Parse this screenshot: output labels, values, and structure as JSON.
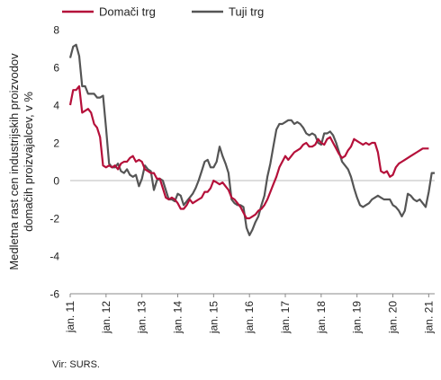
{
  "chart_data": {
    "type": "line",
    "ylabel": "Medletna rast cen industrijskih proizvodov domačih proizvajalcev, v %",
    "ylim": [
      -6,
      8
    ],
    "yticks": [
      -6,
      -4,
      -2,
      0,
      2,
      4,
      6,
      8
    ],
    "xlim": [
      0,
      122
    ],
    "xticks": [
      {
        "label": "jan. 11",
        "t": 0
      },
      {
        "label": "jan. 12",
        "t": 12
      },
      {
        "label": "jan. 13",
        "t": 24
      },
      {
        "label": "jan. 14",
        "t": 36
      },
      {
        "label": "jan. 15",
        "t": 48
      },
      {
        "label": "jan. 16",
        "t": 60
      },
      {
        "label": "jan. 17",
        "t": 72
      },
      {
        "label": "jan. 18",
        "t": 84
      },
      {
        "label": "jan. 19",
        "t": 96
      },
      {
        "label": "jan. 20",
        "t": 108
      },
      {
        "label": "jan. 21",
        "t": 120
      }
    ],
    "grid": false,
    "legend_position": "top",
    "series": [
      {
        "name": "Domači trg",
        "color": "#b5103a",
        "values": [
          4.0,
          4.8,
          4.8,
          5.0,
          3.6,
          3.7,
          3.8,
          3.6,
          3.0,
          2.8,
          2.3,
          0.8,
          0.7,
          0.8,
          0.7,
          0.8,
          0.6,
          0.9,
          1.0,
          1.0,
          1.2,
          1.3,
          1.0,
          1.1,
          1.0,
          0.6,
          0.5,
          0.4,
          0.4,
          0.1,
          0.1,
          -0.4,
          -0.9,
          -1.0,
          -0.9,
          -1.0,
          -1.2,
          -1.5,
          -1.5,
          -1.3,
          -1.0,
          -1.2,
          -1.1,
          -1.0,
          -0.9,
          -0.6,
          -0.6,
          -0.4,
          0.0,
          -0.1,
          -0.2,
          -0.1,
          -0.3,
          -0.5,
          -0.9,
          -1.0,
          -1.2,
          -1.4,
          -1.7,
          -2.0,
          -2.0,
          -1.9,
          -1.8,
          -1.6,
          -1.5,
          -1.3,
          -1.0,
          -0.6,
          -0.2,
          0.2,
          0.7,
          1.0,
          1.3,
          1.1,
          1.3,
          1.5,
          1.6,
          1.7,
          1.9,
          2.0,
          1.8,
          1.8,
          1.9,
          2.2,
          2.0,
          1.9,
          2.2,
          2.3,
          2.0,
          1.7,
          1.4,
          1.2,
          1.3,
          1.6,
          1.8,
          2.2,
          2.1,
          2.0,
          1.9,
          2.0,
          1.9,
          2.0,
          2.0,
          1.5,
          0.5,
          0.4,
          0.5,
          0.2,
          0.3,
          0.7,
          0.9,
          1.0,
          1.1,
          1.2,
          1.3,
          1.4,
          1.5,
          1.6,
          1.7,
          1.7,
          1.7
        ]
      },
      {
        "name": "Tuji trg",
        "color": "#555555",
        "values": [
          6.5,
          7.1,
          7.2,
          6.6,
          5.0,
          5.0,
          4.6,
          4.6,
          4.6,
          4.4,
          4.4,
          4.5,
          2.8,
          0.9,
          0.7,
          0.7,
          0.9,
          0.5,
          0.4,
          0.6,
          0.3,
          0.2,
          0.3,
          -0.3,
          0.1,
          0.8,
          0.6,
          0.5,
          -0.5,
          0.0,
          0.1,
          0.0,
          -0.5,
          -1.0,
          -1.0,
          -1.1,
          -0.7,
          -0.8,
          -1.3,
          -1.1,
          -0.9,
          -0.7,
          -0.4,
          0.0,
          0.5,
          1.0,
          1.1,
          0.7,
          0.7,
          1.0,
          1.8,
          1.3,
          0.9,
          0.4,
          -1.0,
          -1.2,
          -1.3,
          -1.3,
          -1.4,
          -2.5,
          -2.9,
          -2.6,
          -2.2,
          -1.9,
          -1.3,
          -0.8,
          0.2,
          0.9,
          1.8,
          2.7,
          3.0,
          3.0,
          3.1,
          3.2,
          3.2,
          3.0,
          3.1,
          3.0,
          2.8,
          2.5,
          2.4,
          2.5,
          2.4,
          2.0,
          1.9,
          2.5,
          2.5,
          2.6,
          2.4,
          2.0,
          1.5,
          1.0,
          0.8,
          0.6,
          0.2,
          -0.4,
          -0.9,
          -1.3,
          -1.4,
          -1.3,
          -1.2,
          -1.0,
          -0.9,
          -0.8,
          -0.9,
          -1.0,
          -1.0,
          -1.0,
          -1.3,
          -1.4,
          -1.6,
          -1.9,
          -1.6,
          -0.7,
          -0.8,
          -1.0,
          -1.1,
          -1.0,
          -1.2,
          -1.4,
          -0.6,
          0.4,
          0.4
        ]
      }
    ],
    "source": "Vir: SURS."
  }
}
